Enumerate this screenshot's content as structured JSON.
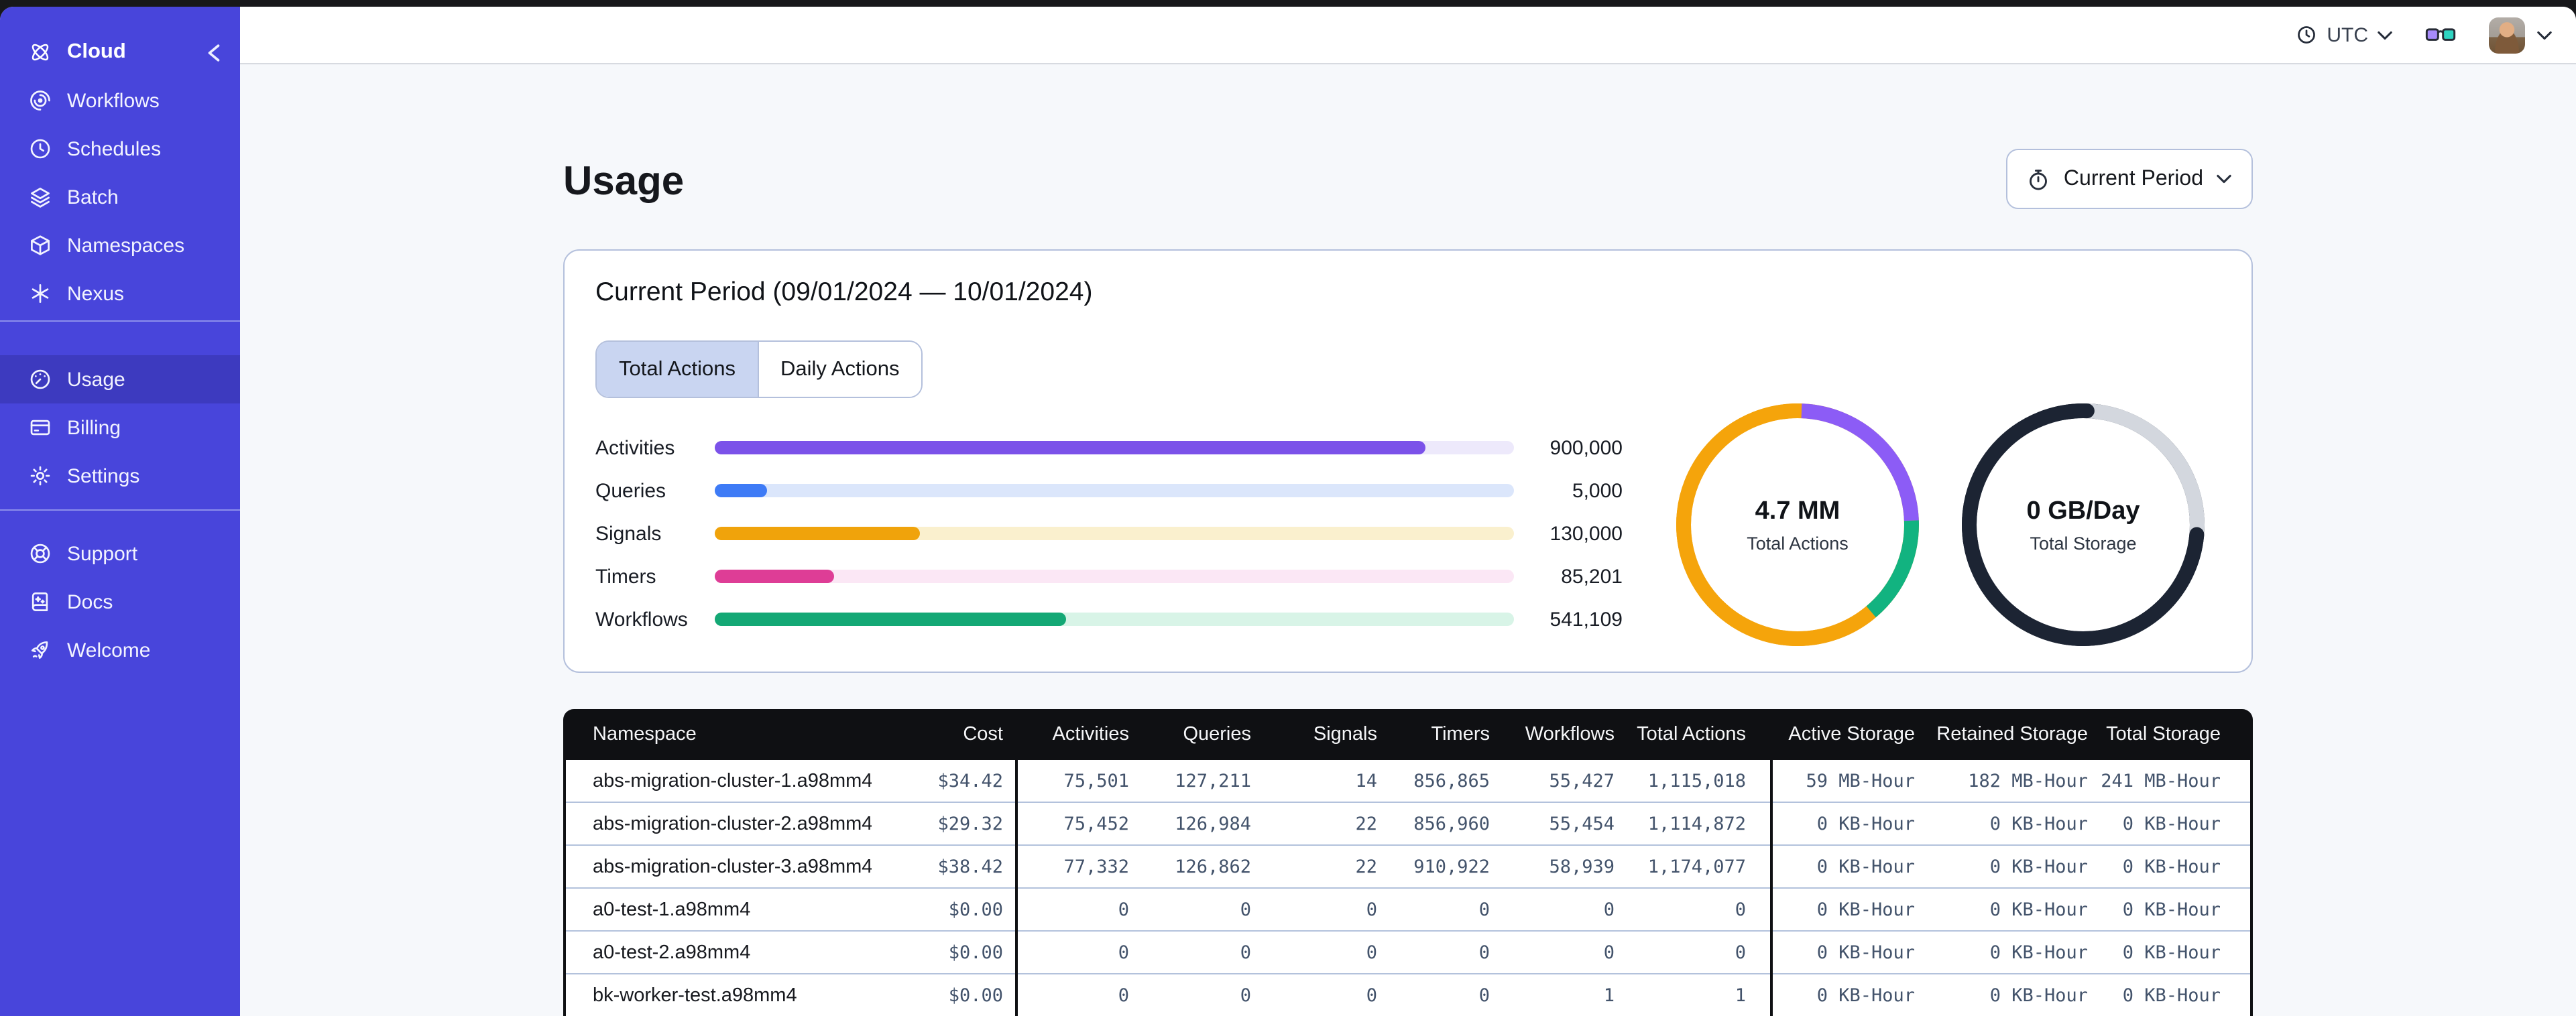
{
  "theme": {
    "sidebar_bg": "#4845DB",
    "sidebar_active": "#3D3ABF",
    "content_bg": "#F6F8FB",
    "border": "#B4C0DC",
    "table_header_bg": "#0F1013",
    "tab_active_bg": "#C9D5F1"
  },
  "topbar": {
    "timezone": "UTC"
  },
  "sidebar": {
    "header": {
      "label": "Cloud",
      "icon": "cloud-logo-icon"
    },
    "groups": [
      {
        "items": [
          {
            "label": "Workflows",
            "icon": "workflows-icon"
          },
          {
            "label": "Schedules",
            "icon": "schedules-icon"
          },
          {
            "label": "Batch",
            "icon": "batch-icon"
          },
          {
            "label": "Namespaces",
            "icon": "namespaces-icon"
          },
          {
            "label": "Nexus",
            "icon": "nexus-icon"
          }
        ]
      },
      {
        "items": [
          {
            "label": "Usage",
            "icon": "usage-icon",
            "active": true
          },
          {
            "label": "Billing",
            "icon": "billing-icon"
          },
          {
            "label": "Settings",
            "icon": "settings-icon"
          }
        ]
      },
      {
        "items": [
          {
            "label": "Support",
            "icon": "support-icon"
          },
          {
            "label": "Docs",
            "icon": "docs-icon"
          },
          {
            "label": "Welcome",
            "icon": "welcome-icon"
          }
        ]
      }
    ]
  },
  "page": {
    "title": "Usage",
    "period_button_label": "Current Period"
  },
  "card": {
    "title": "Current Period (09/01/2024 — 10/01/2024)",
    "tabs": [
      {
        "label": "Total Actions",
        "active": true
      },
      {
        "label": "Daily Actions",
        "active": false
      }
    ]
  },
  "chart_data": [
    {
      "type": "bar",
      "title": "Actions by type (current period)",
      "categories": [
        "Activities",
        "Queries",
        "Signals",
        "Timers",
        "Workflows"
      ],
      "values": [
        900000,
        5000,
        130000,
        85201,
        541109
      ],
      "value_labels": [
        "900,000",
        "5,000",
        "130,000",
        "85,201",
        "541,109"
      ],
      "colors": [
        "#7B52E9",
        "#3E7BF6",
        "#F0A30B",
        "#DE3D96",
        "#14A875"
      ],
      "track_colors": [
        "#EDE9FB",
        "#DBE6FB",
        "#FAF0CE",
        "#FBE7F5",
        "#D8F4E7"
      ],
      "fill_pct": [
        89,
        6.5,
        25.7,
        15,
        44
      ]
    },
    {
      "type": "pie",
      "variant": "donut",
      "center_value": "4.7 MM",
      "center_label": "Total Actions",
      "base_color": "#F5A40B",
      "segments": [
        {
          "label": "activities",
          "color": "#8C5CF6",
          "pct": 24,
          "start_deg": 2,
          "end_deg": 88
        },
        {
          "label": "workflows",
          "color": "#12B380",
          "pct": 14.5,
          "start_deg": 88,
          "end_deg": 140
        },
        {
          "label": "signals",
          "color": "#F5A40B",
          "pct": 61.5,
          "start_deg": 140,
          "end_deg": 362
        }
      ]
    },
    {
      "type": "pie",
      "variant": "donut",
      "center_value": "0 GB/Day",
      "center_label": "Total Storage",
      "base_color": "#1C2433",
      "segments": [
        {
          "label": "retained",
          "color": "#D3D7DE",
          "pct": 26,
          "start_deg": 2,
          "end_deg": 95
        },
        {
          "label": "active",
          "color": "#1C2433",
          "pct": 74,
          "start_deg": 95,
          "end_deg": 362,
          "cap": "round"
        }
      ]
    }
  ],
  "table": {
    "headers": [
      "Namespace",
      "Cost",
      "Activities",
      "Queries",
      "Signals",
      "Timers",
      "Workflows",
      "Total Actions",
      "Active Storage",
      "Retained Storage",
      "Total Storage"
    ],
    "rows": [
      [
        "abs-migration-cluster-1.a98mm4",
        "$34.42",
        "75,501",
        "127,211",
        "14",
        "856,865",
        "55,427",
        "1,115,018",
        "59 MB-Hour",
        "182 MB-Hour",
        "241 MB-Hour"
      ],
      [
        "abs-migration-cluster-2.a98mm4",
        "$29.32",
        "75,452",
        "126,984",
        "22",
        "856,960",
        "55,454",
        "1,114,872",
        "0 KB-Hour",
        "0 KB-Hour",
        "0 KB-Hour"
      ],
      [
        "abs-migration-cluster-3.a98mm4",
        "$38.42",
        "77,332",
        "126,862",
        "22",
        "910,922",
        "58,939",
        "1,174,077",
        "0 KB-Hour",
        "0 KB-Hour",
        "0 KB-Hour"
      ],
      [
        "a0-test-1.a98mm4",
        "$0.00",
        "0",
        "0",
        "0",
        "0",
        "0",
        "0",
        "0 KB-Hour",
        "0 KB-Hour",
        "0 KB-Hour"
      ],
      [
        "a0-test-2.a98mm4",
        "$0.00",
        "0",
        "0",
        "0",
        "0",
        "0",
        "0",
        "0 KB-Hour",
        "0 KB-Hour",
        "0 KB-Hour"
      ],
      [
        "bk-worker-test.a98mm4",
        "$0.00",
        "0",
        "0",
        "0",
        "0",
        "1",
        "1",
        "0 KB-Hour",
        "0 KB-Hour",
        "0 KB-Hour"
      ]
    ]
  }
}
